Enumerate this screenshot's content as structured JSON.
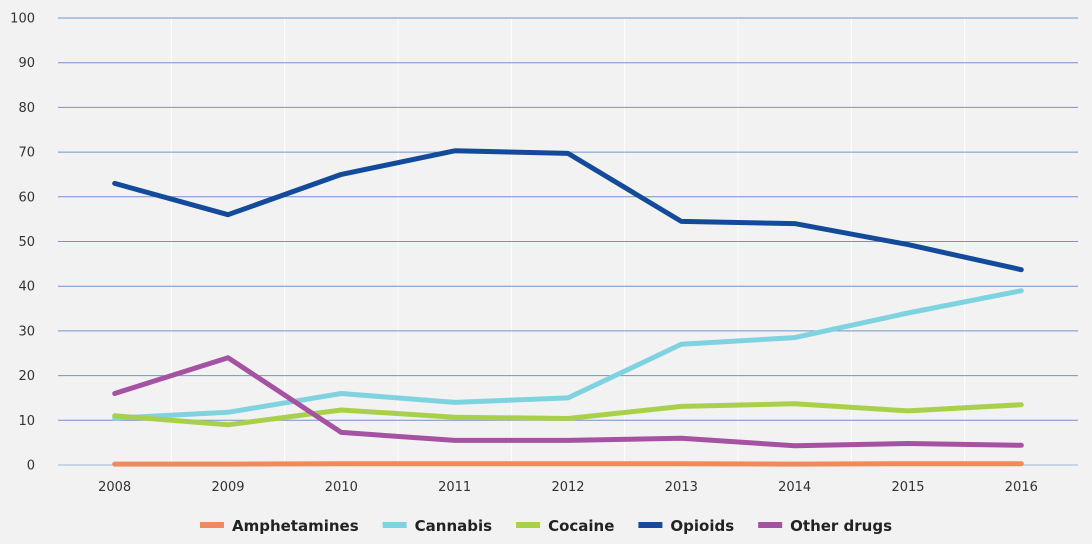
{
  "chart_data": {
    "type": "line",
    "title": "",
    "xlabel": "",
    "ylabel": "",
    "categories": [
      "2008",
      "2009",
      "2010",
      "2011",
      "2012",
      "2013",
      "2014",
      "2015",
      "2016"
    ],
    "ylim": [
      0,
      100
    ],
    "yticks": [
      0,
      10,
      20,
      30,
      40,
      50,
      60,
      70,
      80,
      90,
      100
    ],
    "grid": true,
    "legend_position": "bottom",
    "series": [
      {
        "name": "Amphetamines",
        "color": "#f08a5d",
        "values": [
          0.2,
          0.2,
          0.3,
          0.3,
          0.3,
          0.3,
          0.2,
          0.3,
          0.3
        ]
      },
      {
        "name": "Cannabis",
        "color": "#7fd3e0",
        "values": [
          10.5,
          11.8,
          16,
          14,
          15,
          27,
          28.5,
          34,
          39
        ]
      },
      {
        "name": "Cocaine",
        "color": "#a9d04b",
        "values": [
          11,
          9,
          12.3,
          10.7,
          10.4,
          13.1,
          13.7,
          12.1,
          13.5
        ]
      },
      {
        "name": "Opioids",
        "color": "#134a9a",
        "values": [
          63,
          56,
          65,
          70.3,
          69.7,
          54.5,
          54,
          49.3,
          43.7
        ]
      },
      {
        "name": "Other drugs",
        "color": "#a552a3",
        "values": [
          16,
          24,
          7.3,
          5.5,
          5.5,
          6,
          4.3,
          4.8,
          4.4
        ]
      }
    ]
  }
}
